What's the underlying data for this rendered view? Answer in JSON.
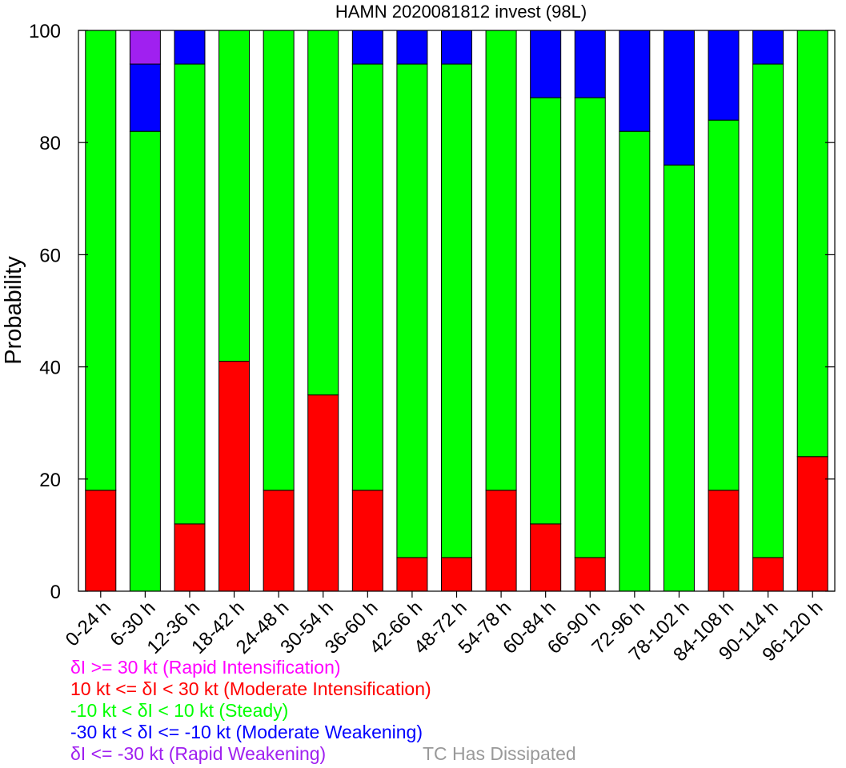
{
  "chart_data": {
    "type": "bar",
    "stacked": true,
    "title": "HAMN 2020081812 invest (98L)",
    "ylabel": "Probability",
    "xlabel": "",
    "ylim": [
      0,
      100
    ],
    "yticks": [
      0,
      20,
      40,
      60,
      80,
      100
    ],
    "grid": false,
    "categories": [
      "0-24 h",
      "6-30 h",
      "12-36 h",
      "18-42 h",
      "24-48 h",
      "30-54 h",
      "36-60 h",
      "42-66 h",
      "48-72 h",
      "54-78 h",
      "60-84 h",
      "66-90 h",
      "72-96 h",
      "78-102 h",
      "84-108 h",
      "90-114 h",
      "96-120 h"
    ],
    "series": [
      {
        "key": "ri",
        "color": "#ff00ff",
        "values": [
          0,
          0,
          0,
          0,
          0,
          0,
          0,
          0,
          0,
          0,
          0,
          0,
          0,
          0,
          0,
          0,
          0
        ]
      },
      {
        "key": "mi",
        "color": "#ff0000",
        "values": [
          18,
          0,
          12,
          41,
          18,
          35,
          18,
          6,
          6,
          18,
          12,
          6,
          0,
          0,
          18,
          6,
          24
        ]
      },
      {
        "key": "steady",
        "color": "#00ff00",
        "values": [
          82,
          82,
          82,
          59,
          82,
          65,
          76,
          88,
          88,
          82,
          76,
          82,
          82,
          76,
          66,
          88,
          76
        ]
      },
      {
        "key": "mw",
        "color": "#0000ff",
        "values": [
          0,
          12,
          6,
          0,
          0,
          0,
          6,
          6,
          6,
          0,
          12,
          12,
          18,
          24,
          16,
          6,
          0
        ]
      },
      {
        "key": "rw",
        "color": "#a020f0",
        "values": [
          0,
          6,
          0,
          0,
          0,
          0,
          0,
          0,
          0,
          0,
          0,
          0,
          0,
          0,
          0,
          0,
          0
        ]
      }
    ],
    "legend": [
      {
        "text": "δI >= 30 kt (Rapid Intensification)",
        "color": "#ff00ff"
      },
      {
        "text": "10 kt <= δI < 30 kt (Moderate Intensification)",
        "color": "#ff0000"
      },
      {
        "text": "-10 kt < δI < 10 kt (Steady)",
        "color": "#00ff00"
      },
      {
        "text": "-30 kt < δI <= -10 kt (Moderate Weakening)",
        "color": "#0000ff"
      },
      {
        "text": "δI <= -30 kt (Rapid Weakening)",
        "color": "#a020f0"
      }
    ],
    "dissipated_label": {
      "text": "TC Has Dissipated",
      "color": "#999999"
    },
    "legend_placement": "bottom"
  }
}
